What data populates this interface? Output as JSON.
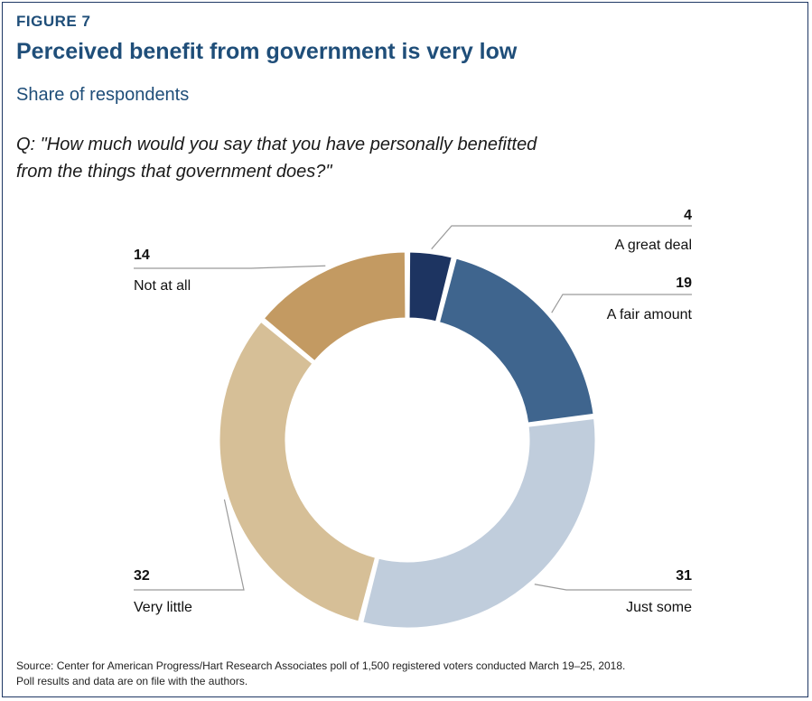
{
  "figure_label": "FIGURE 7",
  "title": "Perceived benefit from government is very low",
  "subtitle": "Share of respondents",
  "question_lines": [
    "Q: \"How much would you say that you have personally benefitted",
    "from the things that government does?\""
  ],
  "source_lines": [
    "Source: Center for American Progress/Hart Research Associates poll of 1,500 registered voters conducted March 19–25, 2018.",
    "Poll results and data are on file with the authors."
  ],
  "colors": {
    "title": "#1f4e79",
    "leader": "#9a9a9a"
  },
  "chart_data": {
    "type": "pie",
    "subtype": "donut",
    "categories": [
      "A great deal",
      "A fair amount",
      "Just some",
      "Very little",
      "Not at all"
    ],
    "values": [
      4,
      19,
      31,
      32,
      14
    ],
    "value_labels": [
      "4",
      "19",
      "31",
      "32",
      "14"
    ],
    "colors": [
      "#1d3461",
      "#3f658e",
      "#c0cddc",
      "#d6bf97",
      "#c39a62"
    ],
    "start_angle_deg": 0,
    "direction": "clockwise"
  }
}
